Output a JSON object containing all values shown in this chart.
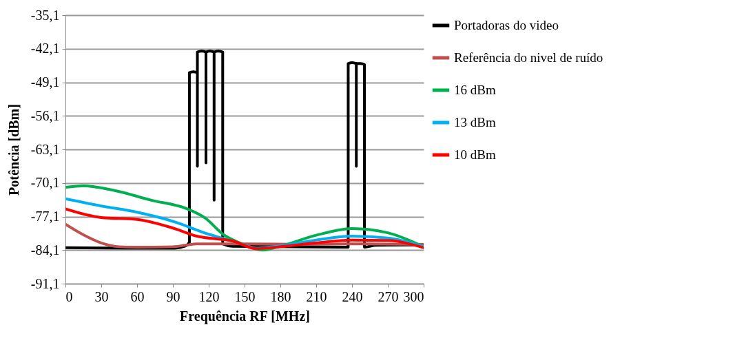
{
  "chart_data": {
    "type": "line",
    "xlabel": "Frequência RF [MHz]",
    "ylabel": "Potência [dBm]",
    "xlim": [
      0,
      300
    ],
    "xticks": [
      0,
      30,
      60,
      90,
      120,
      150,
      180,
      210,
      240,
      270,
      300
    ],
    "ylim": [
      -91.1,
      -35.1
    ],
    "yticks": [
      {
        "value": -91.1,
        "label": "-91,1"
      },
      {
        "value": -84.1,
        "label": "-84,1"
      },
      {
        "value": -77.1,
        "label": "-77,1"
      },
      {
        "value": -70.1,
        "label": "-70,1"
      },
      {
        "value": -63.1,
        "label": "-63,1"
      },
      {
        "value": -56.1,
        "label": "-56,1"
      },
      {
        "value": -49.1,
        "label": "-49,1"
      },
      {
        "value": -42.1,
        "label": "-42,1"
      },
      {
        "value": -35.1,
        "label": "-35,1"
      }
    ],
    "grid": "y",
    "legend": "right",
    "marker": "none",
    "line_style": "solid",
    "series": [
      {
        "name": "Portadoras do video",
        "color": "#000000",
        "x": [
          0,
          50,
          90,
          100,
          103.8,
          103.8,
          107,
          110.5,
          110.5,
          110.5,
          114,
          117.7,
          117.7,
          117.7,
          121,
          124.5,
          124.5,
          124.5,
          128,
          131.7,
          131.7,
          140,
          230,
          236.8,
          236.8,
          240,
          243.6,
          243.6,
          243.6,
          247,
          250.4,
          250.4,
          260,
          300
        ],
        "values": [
          -83.6,
          -83.7,
          -83.7,
          -83.3,
          -82.5,
          -47.1,
          -46.9,
          -47.1,
          -66.6,
          -42.8,
          -42.6,
          -42.8,
          -65.9,
          -42.8,
          -42.6,
          -42.8,
          -73.7,
          -42.8,
          -42.6,
          -42.8,
          -82.8,
          -83.3,
          -83.5,
          -83.5,
          -45.2,
          -45.0,
          -45.2,
          -66.6,
          -45.2,
          -45.2,
          -45.4,
          -83.5,
          -83.1,
          -83.0
        ]
      },
      {
        "name": "Referência do nivel de ruído",
        "color": "#c0504d",
        "x": [
          0,
          15,
          30,
          45,
          60,
          90,
          100,
          110,
          150,
          200,
          250,
          300
        ],
        "values": [
          -78.7,
          -80.9,
          -82.6,
          -83.4,
          -83.5,
          -83.4,
          -83.1,
          -82.8,
          -82.8,
          -82.9,
          -82.8,
          -82.9
        ]
      },
      {
        "name": "16 dBm",
        "color": "#00b050",
        "x": [
          0,
          15,
          40,
          72,
          102,
          117,
          132,
          146,
          165,
          180,
          210,
          240,
          270,
          300
        ],
        "values": [
          -71.0,
          -70.7,
          -71.6,
          -73.7,
          -75.5,
          -77.4,
          -80.8,
          -82.6,
          -84.1,
          -83.3,
          -81.0,
          -79.6,
          -80.5,
          -83.4
        ]
      },
      {
        "name": "13 dBm",
        "color": "#00b0f0",
        "x": [
          0,
          30,
          60,
          90,
          120,
          145,
          160,
          180,
          210,
          240,
          270,
          300
        ],
        "values": [
          -73.4,
          -74.9,
          -76.2,
          -78.1,
          -80.8,
          -82.6,
          -83.7,
          -83.2,
          -82.0,
          -81.2,
          -81.6,
          -83.4
        ]
      },
      {
        "name": "10 dBm",
        "color": "#ff0000",
        "x": [
          0,
          30,
          60,
          90,
          110,
          140,
          160,
          180,
          210,
          240,
          270,
          300
        ],
        "values": [
          -75.5,
          -77.3,
          -77.7,
          -79.5,
          -81.2,
          -82.2,
          -83.8,
          -83.4,
          -82.6,
          -82.0,
          -82.1,
          -83.6
        ]
      }
    ]
  }
}
